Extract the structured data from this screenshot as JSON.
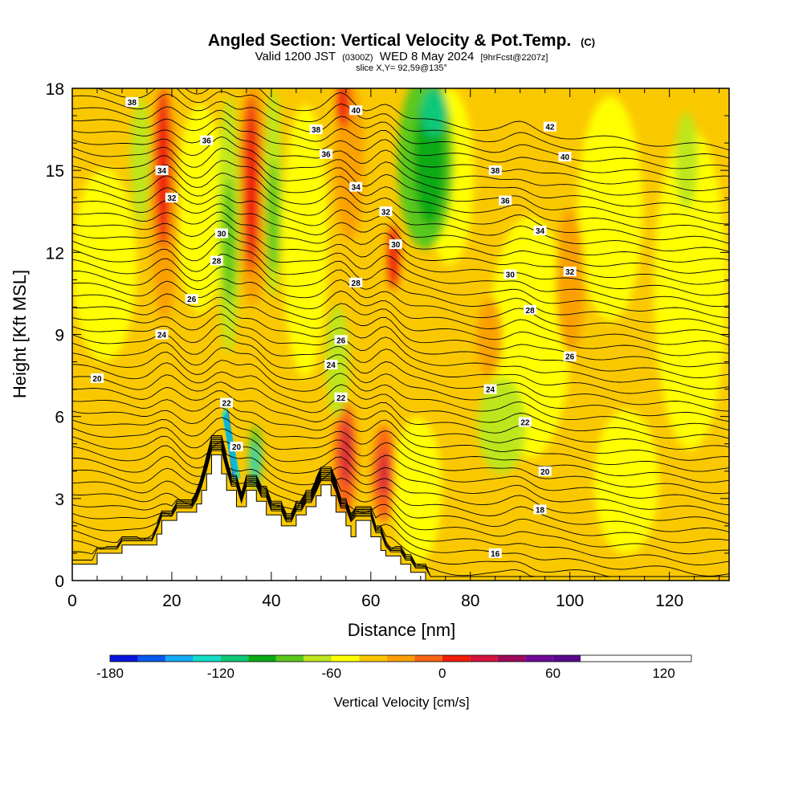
{
  "header": {
    "title_main": "Angled Section: Vertical Velocity & Pot.Temp.",
    "title_unit": "(C)",
    "valid_prefix": "Valid 1200 JST",
    "valid_utc": "(0300Z)",
    "valid_date": "WED 8 May 2024",
    "forecast": "[9hrFcst@2207z]",
    "slice": "slice X,Y= 92,59@135°"
  },
  "chart_data": {
    "type": "heatmap",
    "xlabel": "Distance [nm]",
    "ylabel": "Height [Kft MSL]",
    "xlim": [
      0,
      132
    ],
    "ylim": [
      0,
      18
    ],
    "x_ticks": [
      0,
      20,
      40,
      60,
      80,
      100,
      120
    ],
    "y_ticks": [
      0,
      3,
      6,
      9,
      12,
      15,
      18
    ],
    "colorbar": {
      "label": "Vertical Velocity [cm/s]",
      "ticks": [
        -180,
        -120,
        -60,
        0,
        60,
        120
      ],
      "range": [
        -180,
        135
      ],
      "step": 15,
      "colors": [
        "#0a14dc",
        "#0a5af0",
        "#14aaf5",
        "#14dcc8",
        "#0ac878",
        "#0aaa14",
        "#5ac81e",
        "#bee61e",
        "#ffff00",
        "#fac800",
        "#faa000",
        "#fa6414",
        "#f01e0a",
        "#d2143c",
        "#a00a5a",
        "#6e0a96",
        "#5a0a8c"
      ]
    },
    "terrain": [
      [
        0,
        0.6
      ],
      [
        5,
        0.6
      ],
      [
        5,
        1.0
      ],
      [
        10,
        1.0
      ],
      [
        10,
        1.3
      ],
      [
        15,
        1.3
      ],
      [
        15,
        1.3
      ],
      [
        17,
        1.3
      ],
      [
        17,
        1.7
      ],
      [
        18,
        1.7
      ],
      [
        18,
        2.2
      ],
      [
        21,
        2.2
      ],
      [
        21,
        2.5
      ],
      [
        25,
        2.5
      ],
      [
        25,
        2.8
      ],
      [
        26,
        2.8
      ],
      [
        26,
        3.3
      ],
      [
        27,
        3.3
      ],
      [
        27,
        3.9
      ],
      [
        28,
        3.9
      ],
      [
        28,
        4.6
      ],
      [
        30,
        4.6
      ],
      [
        30,
        3.9
      ],
      [
        31,
        3.9
      ],
      [
        31,
        3.3
      ],
      [
        33,
        3.3
      ],
      [
        33,
        2.7
      ],
      [
        35,
        2.7
      ],
      [
        35,
        3.3
      ],
      [
        37,
        3.3
      ],
      [
        37,
        2.9
      ],
      [
        39,
        2.9
      ],
      [
        39,
        2.4
      ],
      [
        42,
        2.4
      ],
      [
        42,
        2.0
      ],
      [
        45,
        2.0
      ],
      [
        45,
        2.4
      ],
      [
        47,
        2.4
      ],
      [
        47,
        2.7
      ],
      [
        49,
        2.7
      ],
      [
        49,
        3.1
      ],
      [
        50,
        3.1
      ],
      [
        50,
        3.5
      ],
      [
        52,
        3.5
      ],
      [
        52,
        3.1
      ],
      [
        53,
        3.1
      ],
      [
        53,
        2.5
      ],
      [
        55,
        2.5
      ],
      [
        55,
        2.0
      ],
      [
        56,
        2.0
      ],
      [
        56,
        1.6
      ],
      [
        57,
        1.6
      ],
      [
        57,
        2.2
      ],
      [
        60,
        2.2
      ],
      [
        60,
        1.6
      ],
      [
        62,
        1.6
      ],
      [
        62,
        1.1
      ],
      [
        63,
        1.1
      ],
      [
        63,
        0.9
      ],
      [
        66,
        0.9
      ],
      [
        66,
        0.6
      ],
      [
        68,
        0.6
      ],
      [
        68,
        0.3
      ],
      [
        71,
        0.3
      ],
      [
        71,
        0.0
      ]
    ],
    "contour_labels": [
      {
        "text": "38",
        "x": 12,
        "y": 17.5
      },
      {
        "text": "40",
        "x": 57,
        "y": 17.2
      },
      {
        "text": "36",
        "x": 27,
        "y": 16.1
      },
      {
        "text": "38",
        "x": 49,
        "y": 16.5
      },
      {
        "text": "42",
        "x": 96,
        "y": 16.6
      },
      {
        "text": "34",
        "x": 18,
        "y": 15.0
      },
      {
        "text": "36",
        "x": 51,
        "y": 15.6
      },
      {
        "text": "40",
        "x": 99,
        "y": 15.5
      },
      {
        "text": "38",
        "x": 85,
        "y": 15.0
      },
      {
        "text": "32",
        "x": 20,
        "y": 14.0
      },
      {
        "text": "34",
        "x": 57,
        "y": 14.4
      },
      {
        "text": "36",
        "x": 87,
        "y": 13.9
      },
      {
        "text": "32",
        "x": 63,
        "y": 13.5
      },
      {
        "text": "30",
        "x": 30,
        "y": 12.7
      },
      {
        "text": "34",
        "x": 94,
        "y": 12.8
      },
      {
        "text": "30",
        "x": 65,
        "y": 12.3
      },
      {
        "text": "28",
        "x": 29,
        "y": 11.7
      },
      {
        "text": "32",
        "x": 100,
        "y": 11.3
      },
      {
        "text": "30",
        "x": 88,
        "y": 11.2
      },
      {
        "text": "28",
        "x": 57,
        "y": 10.9
      },
      {
        "text": "26",
        "x": 24,
        "y": 10.3
      },
      {
        "text": "28",
        "x": 92,
        "y": 9.9
      },
      {
        "text": "24",
        "x": 18,
        "y": 9.0
      },
      {
        "text": "26",
        "x": 54,
        "y": 8.8
      },
      {
        "text": "26",
        "x": 100,
        "y": 8.2
      },
      {
        "text": "24",
        "x": 52,
        "y": 7.9
      },
      {
        "text": "20",
        "x": 5,
        "y": 7.4
      },
      {
        "text": "24",
        "x": 84,
        "y": 7.0
      },
      {
        "text": "22",
        "x": 31,
        "y": 6.5
      },
      {
        "text": "22",
        "x": 54,
        "y": 6.7
      },
      {
        "text": "22",
        "x": 91,
        "y": 5.8
      },
      {
        "text": "20",
        "x": 33,
        "y": 4.9
      },
      {
        "text": "20",
        "x": 95,
        "y": 4.0
      },
      {
        "text": "18",
        "x": 94,
        "y": 2.6
      },
      {
        "text": "16",
        "x": 85,
        "y": 1.0
      }
    ]
  }
}
